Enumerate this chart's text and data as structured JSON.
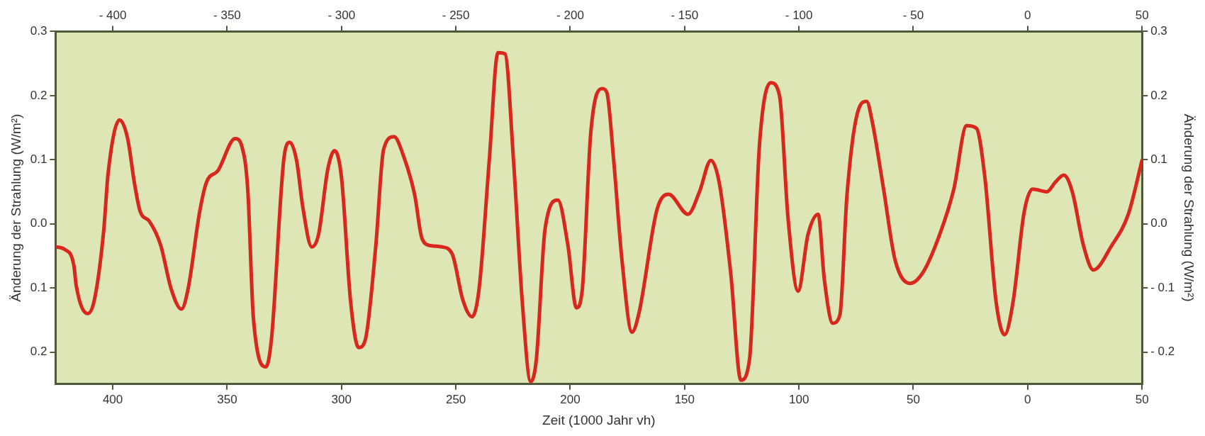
{
  "chart_data": {
    "type": "line",
    "xlabel": "Zeit (1000 Jahr vh)",
    "ylabel": "Änderung der Strahlung (W/m²)",
    "y2label": "Änderung der Strahlung (W/m²)",
    "x": [
      -425,
      -421,
      -417,
      -416,
      -411,
      -408,
      -404,
      -402,
      -397,
      -393.5,
      -390.5,
      -388,
      -384,
      -379,
      -374.6,
      -370,
      -367,
      -362,
      -359,
      -354,
      -346.5,
      -343.5,
      -341,
      -338.5,
      -333,
      -330.6,
      -325,
      -322.6,
      -319.6,
      -317,
      -313,
      -310,
      -306,
      -303,
      -300,
      -296,
      -292.5,
      -289.6,
      -285,
      -281.6,
      -277,
      -273,
      -268,
      -264.8,
      -261,
      -256,
      -251.6,
      -247,
      -242.9,
      -239.8,
      -235.4,
      -231.6,
      -228.5,
      -224.8,
      -221,
      -217.3,
      -214.8,
      -211,
      -205.4,
      -201,
      -197.3,
      -194.8,
      -191,
      -186,
      -184,
      -181,
      -177.4,
      -173,
      -170,
      -162,
      -157,
      -148.5,
      -143.5,
      -138.5,
      -134.8,
      -129.8,
      -125.4,
      -121.6,
      -117.3,
      -112.3,
      -108.5,
      -104.8,
      -100.4,
      -96,
      -91.6,
      -88.9,
      -85.2,
      -82.1,
      -79,
      -74,
      -70.4,
      -68,
      -63,
      -58,
      -51.4,
      -45.8,
      -38.4,
      -32.3,
      -26.7,
      -22.4,
      -18.7,
      -13.8,
      -10.1,
      -6.4,
      -1.5,
      2.2,
      8.4,
      12.1,
      15.8,
      19.5,
      24.4,
      28.7,
      36.7,
      44,
      50
    ],
    "series": [
      {
        "color": "#d8281e",
        "values": [
          -0.036,
          -0.04,
          -0.065,
          -0.096,
          -0.14,
          -0.118,
          -0.012,
          0.08,
          0.162,
          0.133,
          0.063,
          0.019,
          0.004,
          -0.034,
          -0.1,
          -0.133,
          -0.1,
          0.019,
          0.065,
          0.083,
          0.133,
          0.12,
          0.054,
          -0.148,
          -0.223,
          -0.179,
          0.107,
          0.127,
          0.098,
          0.028,
          -0.036,
          -0.016,
          0.085,
          0.114,
          0.072,
          -0.122,
          -0.193,
          -0.181,
          -0.034,
          0.116,
          0.136,
          0.107,
          0.045,
          -0.023,
          -0.034,
          -0.036,
          -0.047,
          -0.118,
          -0.145,
          -0.1,
          0.099,
          0.267,
          0.265,
          0.099,
          -0.12,
          -0.246,
          -0.211,
          -0.008,
          0.037,
          -0.034,
          -0.131,
          -0.105,
          0.143,
          0.211,
          0.205,
          0.099,
          -0.056,
          -0.169,
          -0.14,
          0.023,
          0.046,
          0.015,
          0.05,
          0.099,
          0.063,
          -0.078,
          -0.244,
          -0.211,
          0.121,
          0.22,
          0.2,
          0.01,
          -0.105,
          -0.016,
          0.015,
          -0.087,
          -0.155,
          -0.142,
          0.045,
          0.178,
          0.191,
          0.16,
          0.054,
          -0.056,
          -0.093,
          -0.076,
          -0.016,
          0.054,
          0.153,
          0.149,
          0.072,
          -0.122,
          -0.173,
          -0.122,
          0.019,
          0.054,
          0.05,
          0.065,
          0.076,
          0.05,
          -0.034,
          -0.072,
          -0.034,
          0.015,
          0.099
        ]
      }
    ],
    "xlim": [
      -425,
      50
    ],
    "xticks": [
      {
        "value": -400,
        "label": "400"
      },
      {
        "value": -350,
        "label": "350"
      },
      {
        "value": -300,
        "label": "300"
      },
      {
        "value": -250,
        "label": "250"
      },
      {
        "value": -200,
        "label": "200"
      },
      {
        "value": -150,
        "label": "150"
      },
      {
        "value": -100,
        "label": "100"
      },
      {
        "value": -50,
        "label": "50"
      },
      0,
      50
    ],
    "x2lim": [
      -425,
      50
    ],
    "x2ticks": [
      {
        "value": -400,
        "label": "- 400"
      },
      {
        "value": -350,
        "label": "- 350"
      },
      {
        "value": -300,
        "label": "- 300"
      },
      {
        "value": -250,
        "label": "- 250"
      },
      {
        "value": -200,
        "label": "- 200"
      },
      {
        "value": -150,
        "label": "- 150"
      },
      {
        "value": -100,
        "label": "- 100"
      },
      {
        "value": -50,
        "label": "- 50"
      },
      0,
      50
    ],
    "ylim": [
      -0.25,
      0.3
    ],
    "yticks": [
      {
        "value": -0.2,
        "label": "0.2"
      },
      {
        "value": -0.1,
        "label": "0.1"
      },
      {
        "value": 0,
        "label": "0.0"
      },
      0.1,
      0.2,
      0.3
    ],
    "y2lim": [
      -0.25,
      0.3
    ],
    "y2ticks": [
      {
        "value": -0.2,
        "label": "- 0.2"
      },
      {
        "value": -0.1,
        "label": "- 0.1"
      },
      {
        "value": 0,
        "label": "0.0"
      },
      0.1,
      0.2,
      0.3
    ],
    "grid": false,
    "marker": "none",
    "line_style": "solid"
  }
}
